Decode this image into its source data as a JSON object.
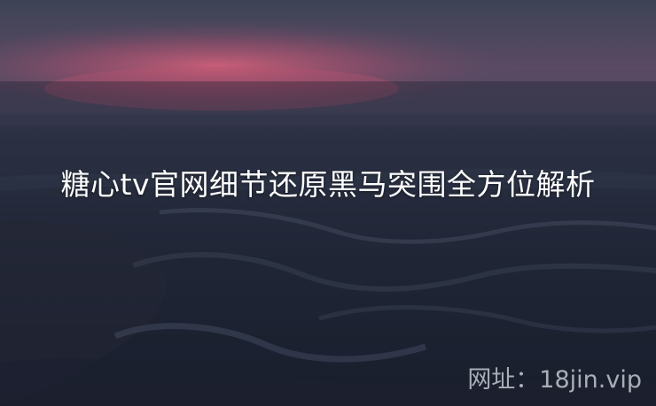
{
  "title": "糖心tv官网细节还原黑马突围全方位解析",
  "watermark": "网址：18jin.vip",
  "colors": {
    "sky_top": "#3f4558",
    "sunset_glow": "#c0566e",
    "sea": "#262c3d",
    "foam": "#5b6378",
    "title_text": "#ffffff"
  }
}
